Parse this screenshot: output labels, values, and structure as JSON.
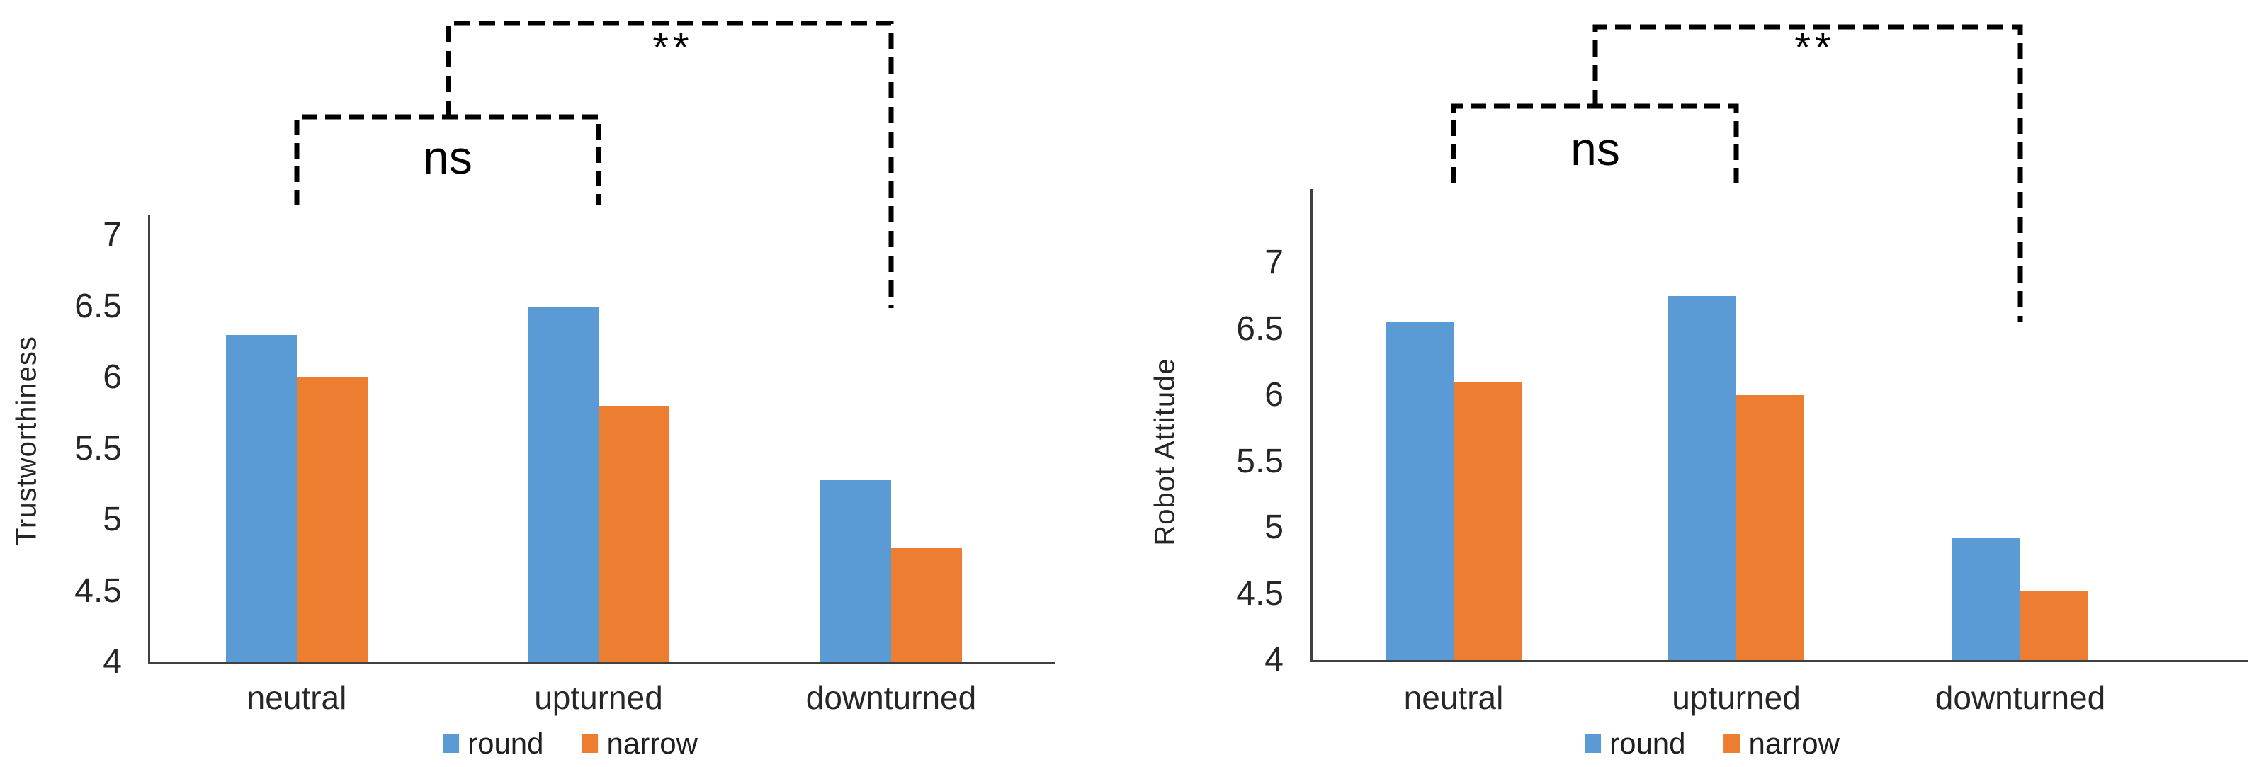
{
  "figure": {
    "background": "#ffffff",
    "axis_color": "#404040",
    "bracket_color": "#000000",
    "text_color": "#262626",
    "series_colors": {
      "round": "#5B9BD5",
      "narrow": "#ED7D31"
    }
  },
  "chart_data": [
    {
      "type": "bar",
      "title": "",
      "xlabel": "",
      "ylabel": "Trustworthiness",
      "categories": [
        "neutral",
        "upturned",
        "downturned"
      ],
      "series": [
        {
          "name": "round",
          "color": "#5B9BD5",
          "values": [
            6.3,
            6.5,
            5.28
          ]
        },
        {
          "name": "narrow",
          "color": "#ED7D31",
          "values": [
            6.0,
            5.8,
            4.8
          ]
        }
      ],
      "ylim": [
        4,
        7
      ],
      "ytick_step": 0.5,
      "yticks": [
        "4",
        "4.5",
        "5",
        "5.5",
        "6",
        "6.5",
        "7"
      ],
      "grid": false,
      "legend_position": "bottom",
      "annotations": [
        {
          "label": "ns",
          "compares": [
            "neutral",
            "upturned"
          ]
        },
        {
          "label": "**",
          "compares": [
            "neutral+upturned",
            "downturned"
          ]
        }
      ]
    },
    {
      "type": "bar",
      "title": "",
      "xlabel": "",
      "ylabel": "Robot Attitude",
      "categories": [
        "neutral",
        "upturned",
        "downturned"
      ],
      "series": [
        {
          "name": "round",
          "color": "#5B9BD5",
          "values": [
            6.55,
            6.75,
            4.92
          ]
        },
        {
          "name": "narrow",
          "color": "#ED7D31",
          "values": [
            6.1,
            6.0,
            4.52
          ]
        }
      ],
      "ylim": [
        4,
        7
      ],
      "ytick_step": 0.5,
      "yticks": [
        "4",
        "4.5",
        "5",
        "5.5",
        "6",
        "6.5",
        "7"
      ],
      "grid": false,
      "legend_position": "bottom",
      "annotations": [
        {
          "label": "ns",
          "compares": [
            "neutral",
            "upturned"
          ]
        },
        {
          "label": "**",
          "compares": [
            "neutral+upturned",
            "downturned"
          ]
        }
      ]
    }
  ]
}
